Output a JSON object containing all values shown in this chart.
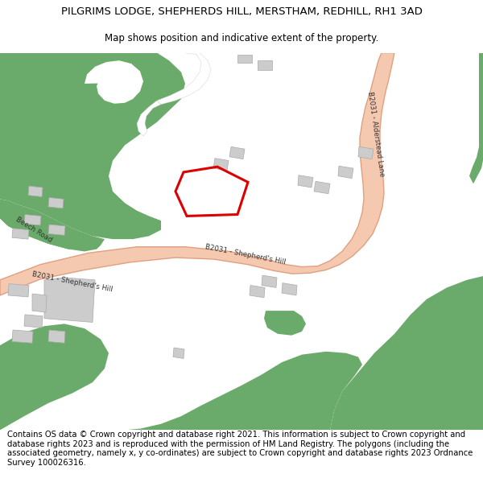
{
  "title": "PILGRIMS LODGE, SHEPHERDS HILL, MERSTHAM, REDHILL, RH1 3AD",
  "subtitle": "Map shows position and indicative extent of the property.",
  "footer": "Contains OS data © Crown copyright and database right 2021. This information is subject to Crown copyright and database rights 2023 and is reproduced with the permission of HM Land Registry. The polygons (including the associated geometry, namely x, y co-ordinates) are subject to Crown copyright and database rights 2023 Ordnance Survey 100026316.",
  "bg": "#ffffff",
  "green": "#6aaa6a",
  "road_fill": "#f5c8b0",
  "road_edge": "#e0a080",
  "bld": "#cccccc",
  "bld_edge": "#aaaaaa",
  "red": "#dd0000",
  "label_color": "#333333",
  "title_fs": 9.5,
  "sub_fs": 8.5,
  "foot_fs": 7.2,
  "road_lw": 1.0,
  "prop_lw": 2.2
}
